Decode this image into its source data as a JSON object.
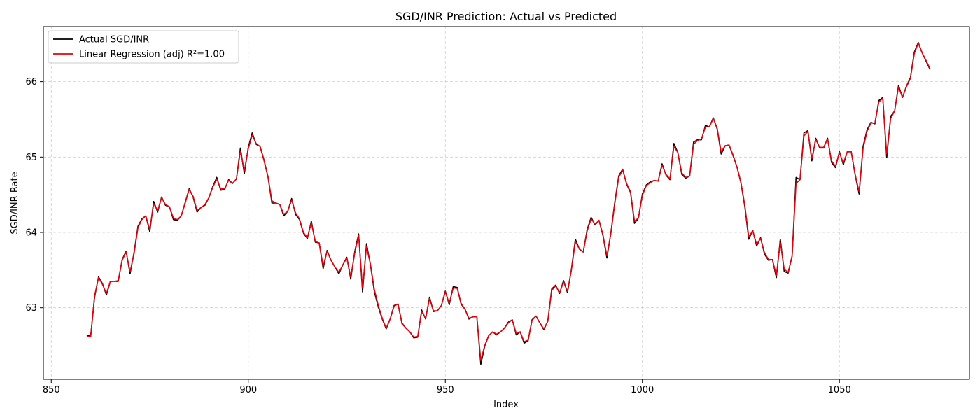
{
  "chart_data": {
    "type": "line",
    "title": "SGD/INR Prediction: Actual vs Predicted",
    "xlabel": "Index",
    "ylabel": "SGD/INR Rate",
    "xlim": [
      848,
      1083
    ],
    "ylim": [
      62.05,
      66.73
    ],
    "xticks": [
      850,
      900,
      950,
      1000,
      1050
    ],
    "yticks": [
      63,
      64,
      65,
      66
    ],
    "grid": true,
    "legend_position": "top-left",
    "x_start": 859,
    "series": [
      {
        "name": "Actual SGD/INR",
        "color": "#000000",
        "values": [
          62.64,
          62.62,
          63.14,
          63.41,
          63.32,
          63.17,
          63.35,
          63.35,
          63.35,
          63.64,
          63.75,
          63.45,
          63.73,
          64.08,
          64.18,
          64.22,
          64.01,
          64.41,
          64.27,
          64.47,
          64.36,
          64.34,
          64.17,
          64.16,
          64.22,
          64.4,
          64.58,
          64.47,
          64.27,
          64.33,
          64.36,
          64.46,
          64.61,
          64.73,
          64.56,
          64.57,
          64.7,
          64.65,
          64.71,
          65.12,
          64.78,
          65.13,
          65.32,
          65.17,
          65.14,
          64.96,
          64.74,
          64.39,
          64.39,
          64.37,
          64.22,
          64.28,
          64.45,
          64.24,
          64.17,
          63.99,
          63.92,
          64.15,
          63.87,
          63.86,
          63.52,
          63.76,
          63.63,
          63.54,
          63.45,
          63.57,
          63.67,
          63.38,
          63.74,
          63.98,
          63.21,
          63.85,
          63.57,
          63.21,
          63.01,
          62.85,
          62.72,
          62.85,
          63.03,
          63.05,
          62.79,
          62.73,
          62.68,
          62.6,
          62.61,
          62.97,
          62.85,
          63.14,
          62.95,
          62.96,
          63.03,
          63.22,
          63.04,
          63.28,
          63.27,
          63.05,
          62.98,
          62.85,
          62.88,
          62.88,
          62.25,
          62.49,
          62.63,
          62.68,
          62.64,
          62.68,
          62.73,
          62.81,
          62.84,
          62.64,
          62.68,
          62.53,
          62.56,
          62.84,
          62.89,
          62.8,
          62.71,
          62.82,
          63.25,
          63.3,
          63.19,
          63.36,
          63.2,
          63.51,
          63.91,
          63.78,
          63.74,
          64.04,
          64.2,
          64.1,
          64.16,
          63.96,
          63.66,
          63.99,
          64.4,
          64.75,
          64.84,
          64.64,
          64.53,
          64.12,
          64.19,
          64.51,
          64.63,
          64.67,
          64.69,
          64.68,
          64.91,
          64.76,
          64.7,
          65.18,
          65.06,
          64.77,
          64.72,
          64.75,
          65.2,
          65.23,
          65.23,
          65.42,
          65.4,
          65.52,
          65.37,
          65.04,
          65.15,
          65.16,
          65.02,
          64.87,
          64.66,
          64.34,
          63.91,
          64.03,
          63.82,
          63.93,
          63.71,
          63.63,
          63.64,
          63.4,
          63.91,
          63.48,
          63.46,
          63.69,
          64.73,
          64.7,
          65.32,
          65.35,
          64.95,
          65.25,
          65.12,
          65.12,
          65.25,
          64.93,
          64.86,
          65.07,
          64.9,
          65.07,
          65.07,
          64.76,
          64.51,
          65.14,
          65.36,
          65.46,
          65.44,
          65.75,
          65.79,
          64.99,
          65.54,
          65.61,
          65.95,
          65.79,
          65.94,
          66.05,
          66.39,
          66.52,
          66.38,
          66.27,
          66.16
        ]
      },
      {
        "name": "Linear Regression (adj) R²=1.00",
        "color": "#e8000b",
        "values": [
          62.62,
          62.62,
          63.16,
          63.4,
          63.31,
          63.19,
          63.35,
          63.35,
          63.36,
          63.63,
          63.74,
          63.48,
          63.71,
          64.06,
          64.17,
          64.22,
          64.04,
          64.38,
          64.29,
          64.46,
          64.37,
          64.34,
          64.19,
          64.17,
          64.22,
          64.39,
          64.57,
          64.48,
          64.29,
          64.33,
          64.37,
          64.46,
          64.6,
          64.71,
          64.58,
          64.58,
          64.69,
          64.65,
          64.71,
          65.08,
          64.82,
          65.11,
          65.29,
          65.18,
          65.14,
          64.95,
          64.74,
          64.42,
          64.39,
          64.37,
          64.24,
          64.28,
          64.43,
          64.26,
          64.18,
          64.0,
          63.93,
          64.13,
          63.88,
          63.86,
          63.55,
          63.75,
          63.63,
          63.54,
          63.47,
          63.57,
          63.66,
          63.41,
          63.72,
          63.96,
          63.26,
          63.81,
          63.58,
          63.24,
          63.03,
          62.86,
          62.73,
          62.85,
          63.02,
          63.05,
          62.8,
          62.73,
          62.68,
          62.61,
          62.62,
          62.95,
          62.86,
          63.12,
          62.96,
          62.96,
          63.03,
          63.21,
          63.06,
          63.26,
          63.26,
          63.06,
          62.98,
          62.86,
          62.88,
          62.88,
          62.3,
          62.5,
          62.63,
          62.68,
          62.65,
          62.68,
          62.73,
          62.8,
          62.84,
          62.66,
          62.68,
          62.55,
          62.57,
          62.83,
          62.89,
          62.8,
          62.72,
          62.82,
          63.23,
          63.29,
          63.2,
          63.34,
          63.22,
          63.5,
          63.88,
          63.78,
          63.74,
          64.02,
          64.18,
          64.11,
          64.16,
          63.97,
          63.69,
          63.98,
          64.38,
          64.73,
          64.83,
          64.65,
          64.54,
          64.15,
          64.19,
          64.49,
          64.62,
          64.66,
          64.69,
          64.68,
          64.89,
          64.77,
          64.71,
          65.14,
          65.06,
          64.79,
          64.73,
          64.75,
          65.17,
          65.22,
          65.24,
          65.4,
          65.4,
          65.51,
          65.38,
          65.07,
          65.15,
          65.16,
          65.03,
          64.87,
          64.67,
          64.36,
          63.94,
          64.02,
          63.84,
          63.92,
          63.73,
          63.64,
          63.64,
          63.43,
          63.87,
          63.51,
          63.47,
          63.68,
          64.65,
          64.7,
          65.28,
          65.34,
          64.98,
          65.23,
          65.13,
          65.13,
          65.24,
          64.95,
          64.88,
          65.06,
          64.92,
          65.07,
          65.07,
          64.77,
          64.54,
          65.11,
          65.34,
          65.45,
          65.45,
          65.73,
          65.78,
          65.04,
          65.51,
          65.61,
          65.93,
          65.79,
          65.93,
          66.04,
          66.37,
          66.51,
          66.38,
          66.28,
          66.17
        ]
      }
    ]
  }
}
